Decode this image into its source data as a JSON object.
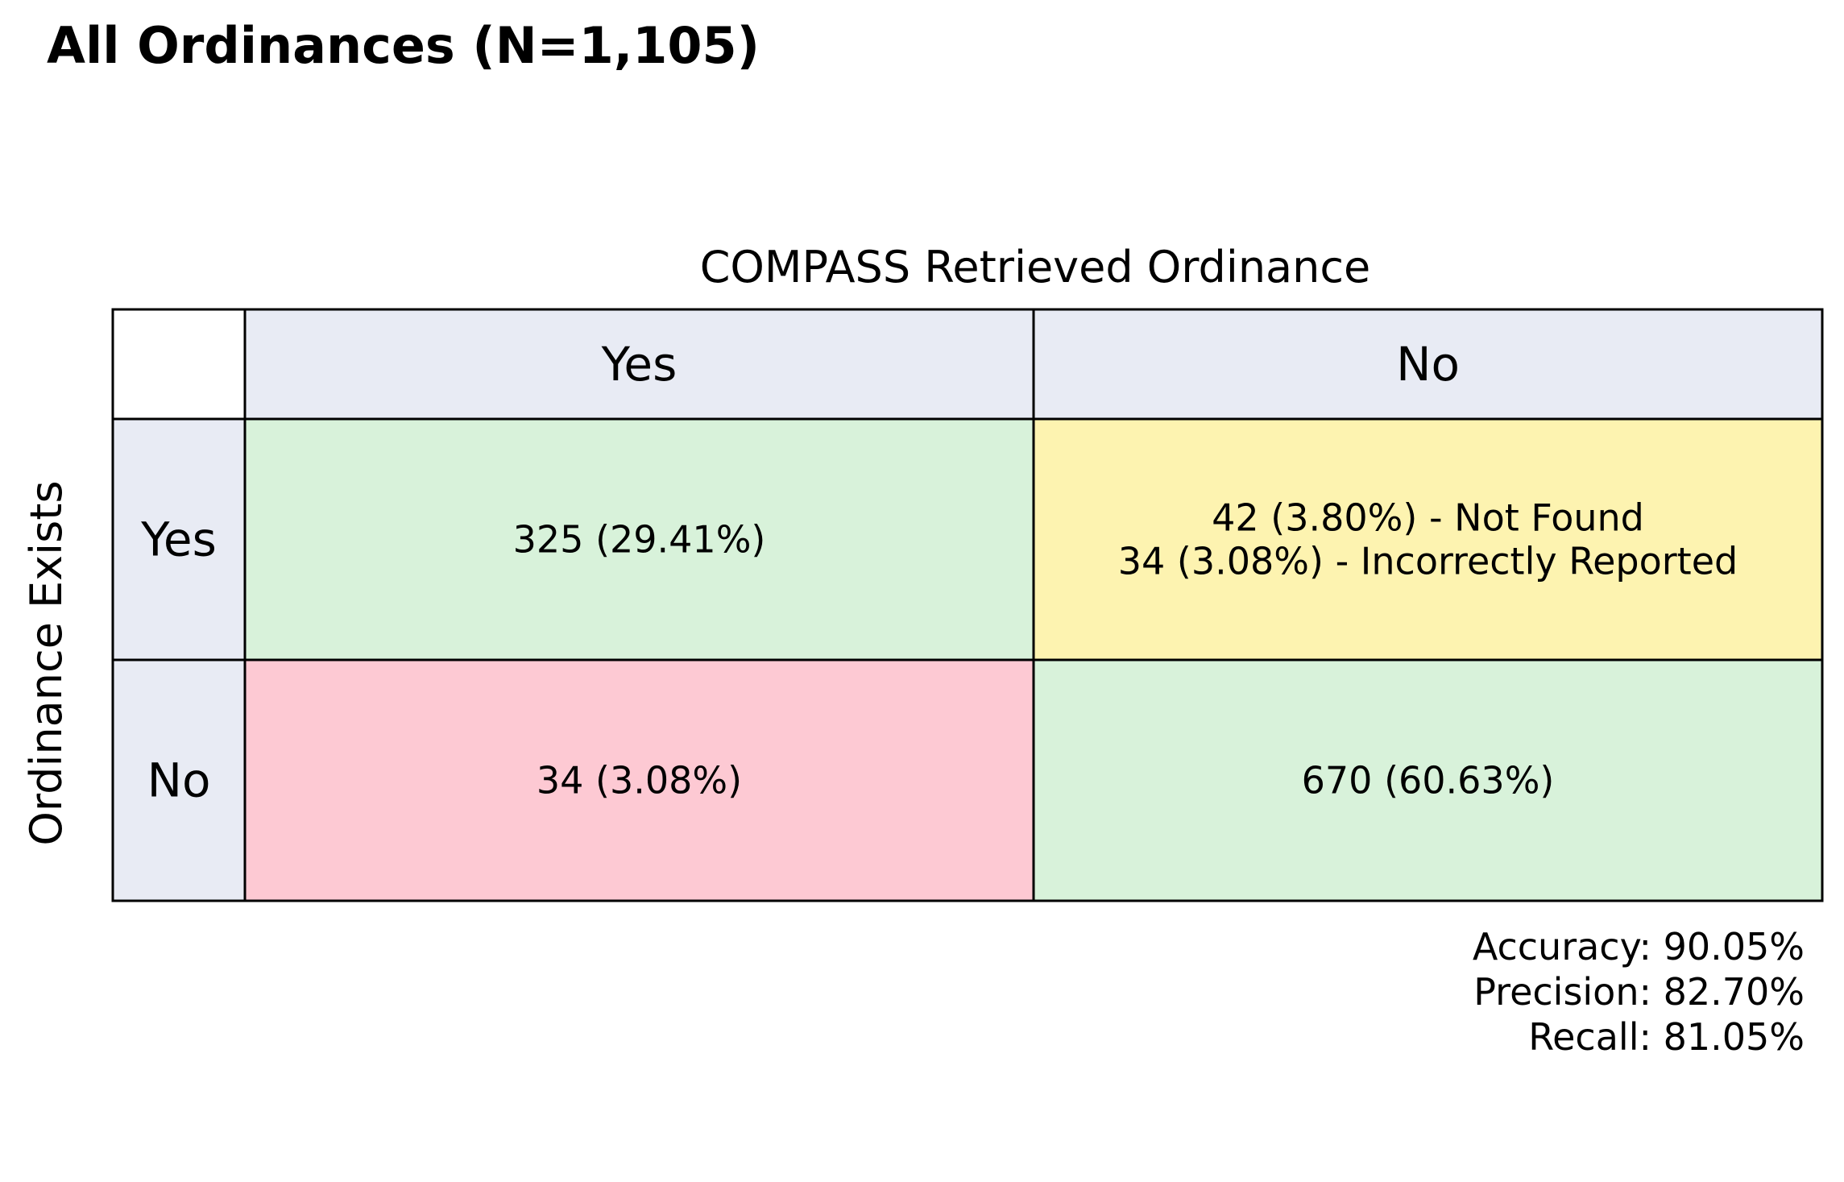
{
  "chart_data": {
    "type": "table",
    "title": "All Ordinances (N=1,105)",
    "column_axis_label": "COMPASS Retrieved Ordinance",
    "row_axis_label": "Ordinance Exists",
    "columns": [
      "Yes",
      "No"
    ],
    "rows": [
      "Yes",
      "No"
    ],
    "cells": [
      [
        {
          "lines": [
            "325 (29.41%)"
          ],
          "counts": [
            325
          ],
          "percents": [
            29.41
          ],
          "color": "#d8f2da"
        },
        {
          "lines": [
            "42 (3.80%) - Not Found",
            "34 (3.08%) - Incorrectly Reported"
          ],
          "counts": [
            42,
            34
          ],
          "percents": [
            3.8,
            3.08
          ],
          "color": "#fdf3b0"
        }
      ],
      [
        {
          "lines": [
            "34 (3.08%)"
          ],
          "counts": [
            34
          ],
          "percents": [
            3.08
          ],
          "color": "#fdc9d3"
        },
        {
          "lines": [
            "670 (60.63%)"
          ],
          "counts": [
            670
          ],
          "percents": [
            60.63
          ],
          "color": "#d8f2da"
        }
      ]
    ],
    "header_color": "#e8ebf4",
    "metrics": [
      {
        "label": "Accuracy",
        "value": "90.05%",
        "text": "Accuracy: 90.05%"
      },
      {
        "label": "Precision",
        "value": "82.70%",
        "text": "Precision: 82.70%"
      },
      {
        "label": "Recall",
        "value": "81.05%",
        "text": "Recall: 81.05%"
      }
    ]
  }
}
